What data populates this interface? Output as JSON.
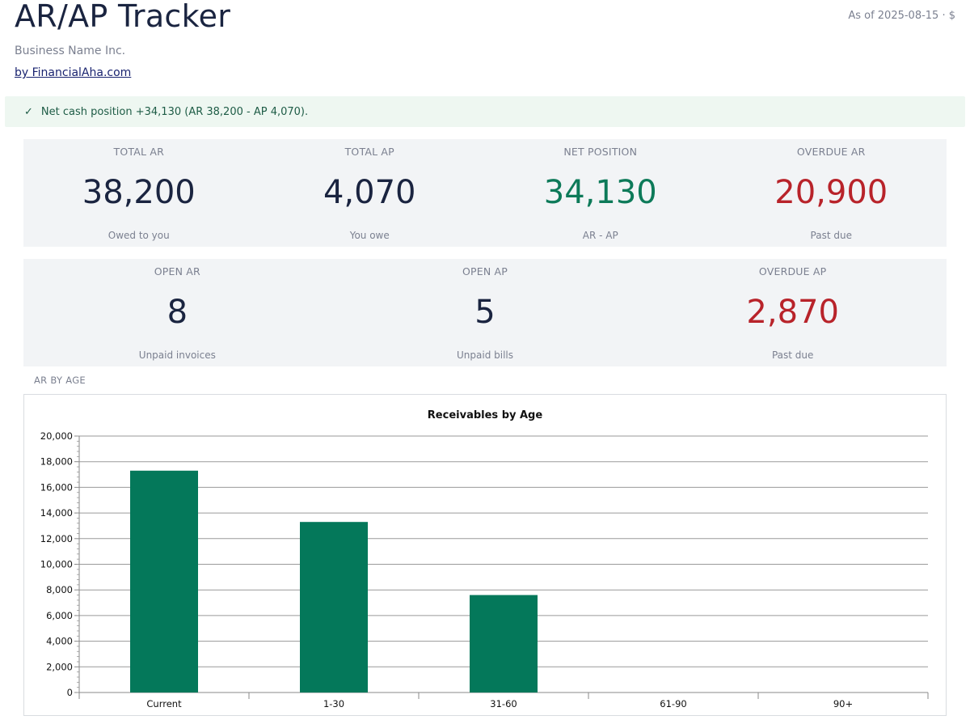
{
  "header": {
    "title": "AR/AP Tracker",
    "as_of": "As of 2025-08-15 · $",
    "business_name": "Business Name Inc.",
    "by_link": "by FinancialAha.com"
  },
  "banner": {
    "check": "✓",
    "text": "Net cash position +34,130 (AR 38,200 - AP 4,070)."
  },
  "kpis_row1": [
    {
      "label": "TOTAL AR",
      "value": "38,200",
      "sub": "Owed to you",
      "tone": "default"
    },
    {
      "label": "TOTAL AP",
      "value": "4,070",
      "sub": "You owe",
      "tone": "default"
    },
    {
      "label": "NET POSITION",
      "value": "34,130",
      "sub": "AR - AP",
      "tone": "green"
    },
    {
      "label": "OVERDUE AR",
      "value": "20,900",
      "sub": "Past due",
      "tone": "red"
    }
  ],
  "kpis_row2": [
    {
      "label": "OPEN AR",
      "value": "8",
      "sub": "Unpaid invoices",
      "tone": "default"
    },
    {
      "label": "OPEN AP",
      "value": "5",
      "sub": "Unpaid bills",
      "tone": "default"
    },
    {
      "label": "OVERDUE AP",
      "value": "2,870",
      "sub": "Past due",
      "tone": "red"
    }
  ],
  "section": {
    "ar_by_age": "AR BY AGE"
  },
  "colors": {
    "bar": "#04785a",
    "green": "#0d7a59",
    "red": "#b8232a",
    "text": "#1a2440"
  },
  "chart_data": {
    "type": "bar",
    "title": "Receivables by Age",
    "categories": [
      "Current",
      "1-30",
      "31-60",
      "61-90",
      "90+"
    ],
    "values": [
      17300,
      13300,
      7600,
      0,
      0
    ],
    "ylim": [
      0,
      20000
    ],
    "yticks": [
      0,
      2000,
      4000,
      6000,
      8000,
      10000,
      12000,
      14000,
      16000,
      18000,
      20000
    ],
    "ytick_labels": [
      "0",
      "2,000",
      "4,000",
      "6,000",
      "8,000",
      "10,000",
      "12,000",
      "14,000",
      "16,000",
      "18,000",
      "20,000"
    ],
    "xlabel": "",
    "ylabel": "",
    "grid": true,
    "legend": "none"
  }
}
